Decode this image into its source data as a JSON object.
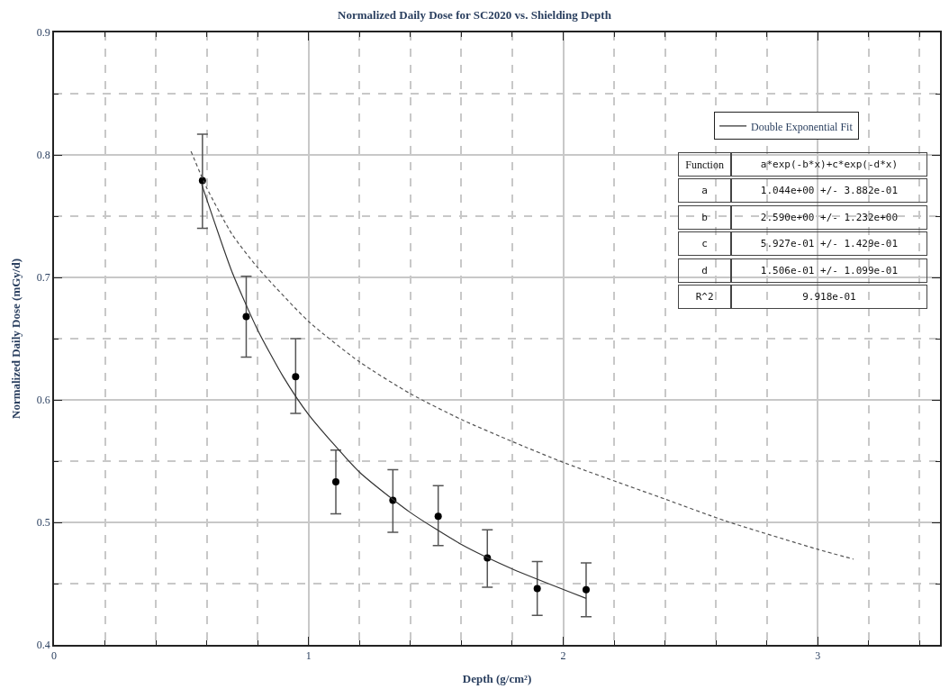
{
  "chart_data": {
    "type": "scatter",
    "title": "Normalized Daily Dose for SC2020 vs. Shielding Depth",
    "xlabel": "Depth (g/cm²)",
    "ylabel": "Normalized Daily Dose (mGy/d)",
    "xlim": [
      0,
      3.48
    ],
    "ylim": [
      0.4,
      0.9
    ],
    "xticks": [
      0,
      {
        "value": 0.2,
        "label": null
      },
      {
        "value": 0.4,
        "label": null
      },
      {
        "value": 0.6,
        "label": null
      },
      {
        "value": 0.8,
        "label": null
      },
      1,
      {
        "value": 1.2,
        "label": null
      },
      {
        "value": 1.4,
        "label": null
      },
      {
        "value": 1.6,
        "label": null
      },
      {
        "value": 1.8,
        "label": null
      },
      2,
      {
        "value": 2.2,
        "label": null
      },
      {
        "value": 2.4,
        "label": null
      },
      {
        "value": 2.6,
        "label": null
      },
      {
        "value": 2.8,
        "label": null
      },
      3,
      {
        "value": 3.2,
        "label": null
      },
      {
        "value": 3.4,
        "label": null
      }
    ],
    "yticks": [
      0.4,
      {
        "value": 0.45,
        "label": null
      },
      0.5,
      {
        "value": 0.55,
        "label": null
      },
      0.6,
      {
        "value": 0.65,
        "label": null
      },
      0.7,
      {
        "value": 0.75,
        "label": null
      },
      0.8,
      {
        "value": 0.85,
        "label": null
      },
      0.9
    ],
    "grid": true,
    "legend": "top right",
    "series": [
      {
        "color": "#000000",
        "marker": "circle",
        "x": [
          0.583,
          0.755,
          0.949,
          1.107,
          1.331,
          1.509,
          1.702,
          1.898,
          2.09
        ],
        "values": [
          0.779,
          0.668,
          0.619,
          0.533,
          0.518,
          0.505,
          0.471,
          0.446,
          0.445
        ],
        "errors": [
          [
            0.74,
            0.817
          ],
          [
            0.635,
            0.701
          ],
          [
            0.589,
            0.65
          ],
          [
            0.507,
            0.559
          ],
          [
            0.492,
            0.543
          ],
          [
            0.481,
            0.53
          ],
          [
            0.447,
            0.494
          ],
          [
            0.424,
            0.468
          ],
          [
            0.423,
            0.467
          ]
        ]
      },
      {
        "type": "line",
        "name": "Double Exponential Fit",
        "color": "#333333",
        "line_style": "solid",
        "x": [
          0.58,
          0.7,
          0.8,
          0.9,
          1.0,
          1.2,
          1.4,
          1.6,
          1.8,
          2.09
        ],
        "values": [
          0.776,
          0.704,
          0.657,
          0.619,
          0.588,
          0.541,
          0.508,
          0.482,
          0.462,
          0.438
        ]
      },
      {
        "type": "line",
        "color": "#555555",
        "line_style": "dashed",
        "x": [
          0.538,
          0.6,
          0.7,
          0.8,
          1.0,
          1.2,
          1.4,
          1.6,
          1.8,
          2.0,
          2.4,
          2.64,
          3.0,
          3.14
        ],
        "values": [
          0.803,
          0.773,
          0.735,
          0.708,
          0.664,
          0.631,
          0.605,
          0.584,
          0.566,
          0.549,
          0.519,
          0.501,
          0.478,
          0.47
        ]
      }
    ],
    "annotations": [
      "Function",
      "a*exp(-b*x)+c*exp(-d*x)",
      "a",
      "1.044e+00 +/- 3.882e-01",
      "b",
      "2.590e+00 +/- 1.232e+00",
      "c",
      "5.927e-01 +/- 1.429e-01",
      "d",
      "1.506e-01 +/- 1.099e-01",
      "R^2",
      "9.918e-01"
    ]
  }
}
